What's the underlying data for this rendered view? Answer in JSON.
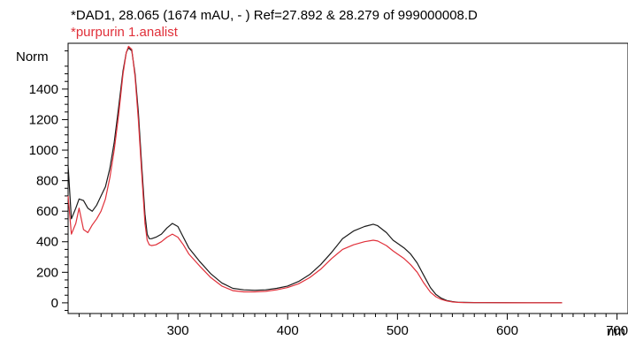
{
  "chart_data": {
    "type": "line",
    "legend": [
      "*DAD1, 28.065 (1674 mAU, - ) Ref=27.892 & 28.279 of 999000008.D",
      "*purpurin 1.analist"
    ],
    "ylabel": "Norm",
    "xlabel": "nm",
    "xlim": [
      200,
      710
    ],
    "ylim": [
      -70,
      1700
    ],
    "x_ticks": [
      300,
      400,
      500,
      600,
      700
    ],
    "y_ticks": [
      0,
      200,
      400,
      600,
      800,
      1000,
      1200,
      1400
    ],
    "grid": false,
    "series": [
      {
        "color": "#1a1a1a",
        "x": [
          200,
          203,
          207,
          210,
          214,
          218,
          222,
          226,
          230,
          234,
          238,
          242,
          246,
          250,
          253,
          255,
          258,
          261,
          264,
          267,
          270,
          272,
          274,
          276,
          280,
          285,
          290,
          295,
          300,
          305,
          310,
          320,
          330,
          340,
          350,
          360,
          370,
          380,
          390,
          400,
          410,
          420,
          430,
          440,
          450,
          460,
          470,
          478,
          482,
          490,
          496,
          500,
          506,
          512,
          518,
          524,
          530,
          535,
          540,
          545,
          550,
          555,
          560,
          570,
          580,
          600,
          620,
          640,
          650
        ],
        "y": [
          900,
          550,
          620,
          680,
          670,
          620,
          600,
          640,
          700,
          760,
          880,
          1050,
          1280,
          1520,
          1640,
          1670,
          1650,
          1500,
          1250,
          900,
          580,
          450,
          420,
          420,
          430,
          450,
          490,
          520,
          500,
          430,
          360,
          270,
          190,
          130,
          95,
          85,
          82,
          85,
          95,
          110,
          140,
          185,
          250,
          330,
          420,
          470,
          500,
          515,
          505,
          460,
          410,
          390,
          360,
          320,
          260,
          180,
          100,
          55,
          30,
          15,
          8,
          4,
          3,
          2,
          2,
          1,
          0,
          0,
          0
        ]
      },
      {
        "color": "#e0303a",
        "x": [
          200,
          203,
          207,
          210,
          214,
          218,
          222,
          226,
          230,
          234,
          238,
          242,
          246,
          250,
          253,
          255,
          258,
          261,
          264,
          267,
          270,
          272,
          274,
          276,
          280,
          285,
          290,
          295,
          300,
          305,
          310,
          320,
          330,
          340,
          350,
          360,
          370,
          380,
          390,
          400,
          410,
          420,
          430,
          440,
          450,
          460,
          470,
          478,
          482,
          490,
          496,
          500,
          506,
          512,
          518,
          524,
          530,
          535,
          540,
          545,
          550,
          555,
          560,
          570,
          580,
          600,
          620,
          640,
          650
        ],
        "y": [
          700,
          450,
          520,
          620,
          480,
          460,
          510,
          550,
          600,
          680,
          820,
          1000,
          1230,
          1500,
          1640,
          1680,
          1660,
          1480,
          1200,
          850,
          520,
          410,
          380,
          375,
          380,
          400,
          430,
          450,
          430,
          380,
          320,
          240,
          165,
          110,
          80,
          72,
          72,
          75,
          85,
          100,
          125,
          165,
          220,
          290,
          350,
          380,
          400,
          410,
          405,
          375,
          340,
          320,
          290,
          250,
          200,
          130,
          70,
          40,
          22,
          12,
          6,
          3,
          2,
          1,
          1,
          0,
          0,
          0,
          0
        ]
      }
    ]
  }
}
